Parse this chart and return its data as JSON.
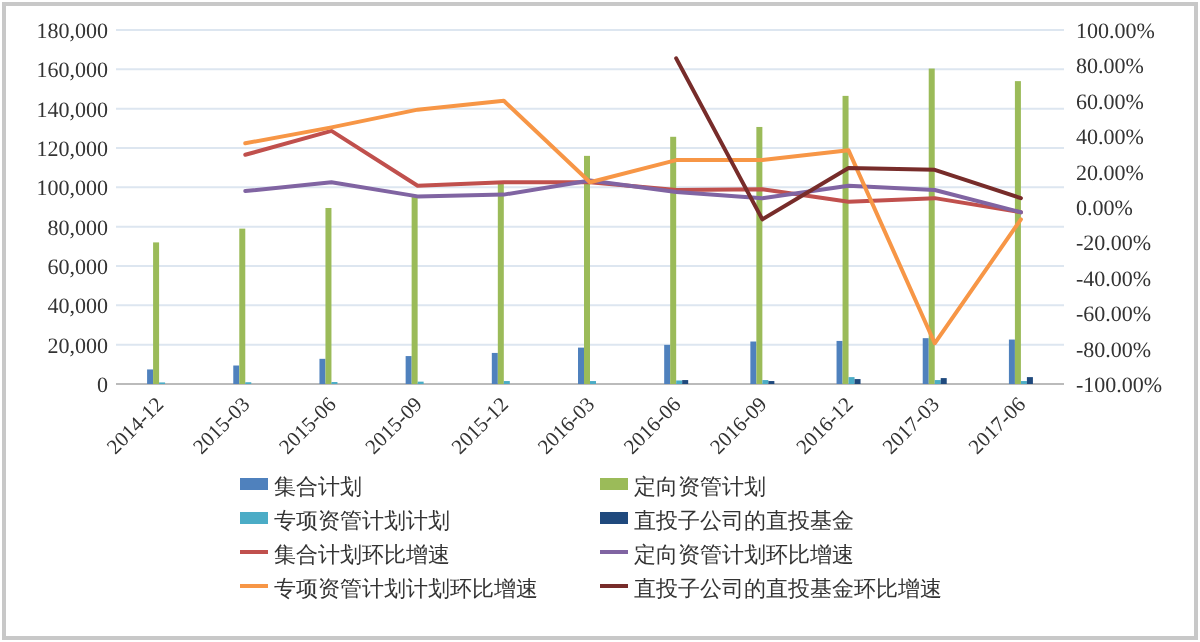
{
  "chart_data": {
    "type": "bar",
    "categories": [
      "2014-12",
      "2015-03",
      "2015-06",
      "2015-09",
      "2015-12",
      "2016-03",
      "2016-06",
      "2016-09",
      "2016-12",
      "2017-03",
      "2017-06"
    ],
    "series": [
      {
        "name": "集合计划",
        "color": "#4f81bd",
        "values": [
          7400,
          9400,
          12800,
          14200,
          15800,
          18500,
          19900,
          21600,
          21900,
          23300,
          22600
        ]
      },
      {
        "name": "定向资管计划",
        "color": "#9bbb59",
        "values": [
          72000,
          79000,
          89500,
          95300,
          103000,
          116000,
          125700,
          130700,
          146500,
          160400,
          154000
        ]
      },
      {
        "name": "专项资管计划计划",
        "color": "#4bacc6",
        "values": [
          800,
          900,
          1000,
          1200,
          1500,
          1500,
          1800,
          2000,
          3500,
          2000,
          1500
        ]
      },
      {
        "name": "直投子公司的直投基金",
        "color": "#1f497d",
        "values": [
          null,
          null,
          null,
          null,
          null,
          null,
          2000,
          1500,
          2500,
          3000,
          3500
        ]
      },
      {
        "name": "集合计划环比增速",
        "color": "#c0504d",
        "type": "line",
        "axis": "y2",
        "values": [
          null,
          29.5,
          43,
          12,
          14,
          14,
          9.6,
          10,
          3,
          5,
          -3
        ]
      },
      {
        "name": "定向资管计划环比增速",
        "color": "#8064a2",
        "type": "line",
        "axis": "y2",
        "values": [
          null,
          9,
          14,
          6,
          7,
          15,
          8.5,
          5,
          12,
          9.6,
          -3
        ]
      },
      {
        "name": "专项资管计划计划环比增速",
        "color": "#f79646",
        "type": "line",
        "axis": "y2",
        "values": [
          null,
          36,
          45,
          55,
          60,
          14,
          26.5,
          26.5,
          32,
          -77,
          -7
        ]
      },
      {
        "name": "直投子公司的直投基金环比增速",
        "color": "#772c2a",
        "type": "line",
        "axis": "y2",
        "values": [
          null,
          null,
          null,
          null,
          null,
          null,
          84,
          -7,
          22,
          21,
          5
        ]
      }
    ],
    "ylim": [
      0,
      180000
    ],
    "yticks": [
      {
        "value": 0,
        "label": "0"
      },
      {
        "value": 20000,
        "label": "20,000"
      },
      {
        "value": 40000,
        "label": "40,000"
      },
      {
        "value": 60000,
        "label": "60,000"
      },
      {
        "value": 80000,
        "label": "80,000"
      },
      {
        "value": 100000,
        "label": "100,000"
      },
      {
        "value": 120000,
        "label": "120,000"
      },
      {
        "value": 140000,
        "label": "140,000"
      },
      {
        "value": 160000,
        "label": "160,000"
      },
      {
        "value": 180000,
        "label": "180,000"
      }
    ],
    "y2lim": [
      -100,
      100
    ],
    "y2ticks": [
      {
        "value": -100,
        "label": "-100.00%"
      },
      {
        "value": -80,
        "label": "-80.00%"
      },
      {
        "value": -60,
        "label": "-60.00%"
      },
      {
        "value": -40,
        "label": "-40.00%"
      },
      {
        "value": -20,
        "label": "-20.00%"
      },
      {
        "value": 0,
        "label": "0.00%"
      },
      {
        "value": 20,
        "label": "20.00%"
      },
      {
        "value": 40,
        "label": "40.00%"
      },
      {
        "value": 60,
        "label": "60.00%"
      },
      {
        "value": 80,
        "label": "80.00%"
      },
      {
        "value": 100,
        "label": "100.00%"
      }
    ],
    "grid": "y",
    "legend": "bottom"
  }
}
